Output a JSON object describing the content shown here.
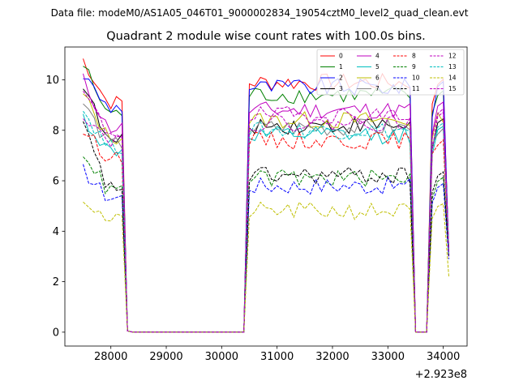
{
  "figure": {
    "supertitle": "Data file: modeM0/AS1A05_046T01_9000002834_19054cztM0_level2_quad_clean.evt",
    "title": "Quadrant 2 module wise count rates with 100.0s bins.",
    "x_offset_label": "+2.923e8"
  },
  "chart_data": {
    "type": "line",
    "title": "Quadrant 2 module wise count rates with 100.0s bins.",
    "xlabel": "",
    "ylabel": "",
    "x_offset": 292300000,
    "xlim": [
      27170,
      34430
    ],
    "ylim": [
      -0.55,
      11.3
    ],
    "xticks": [
      28000,
      29000,
      30000,
      31000,
      32000,
      33000,
      34000
    ],
    "xtick_labels": [
      "28000",
      "29000",
      "30000",
      "31000",
      "32000",
      "33000",
      "34000"
    ],
    "yticks": [
      0,
      2,
      4,
      6,
      8,
      10
    ],
    "ytick_labels": [
      "0",
      "2",
      "4",
      "6",
      "8",
      "10"
    ],
    "grid": false,
    "legend_position": "top-right",
    "gaps": [
      {
        "from": 28300,
        "to": 30400,
        "value": 0.0
      },
      {
        "from": 33600,
        "to": 33600,
        "value": 0.0
      }
    ],
    "segments": {
      "seg1_x": [
        27500,
        27600,
        27700,
        27800,
        27900,
        28000,
        28100,
        28200
      ],
      "seg2_x": [
        30400,
        30500,
        30600,
        30700,
        30800,
        30900,
        31000,
        31100,
        31200,
        31300,
        31400,
        31500,
        31600,
        31700,
        31800,
        31900,
        32000,
        32100,
        32200,
        32300,
        32400,
        32500,
        32600,
        32700,
        32800,
        32900,
        33000,
        33100,
        33200,
        33300,
        33400
      ],
      "seg3_x": [
        33900,
        34000,
        34100
      ]
    },
    "series": [
      {
        "name": "0",
        "color": "#ff0000",
        "dash": "solid",
        "level": 9.9,
        "start": 10.8,
        "end": 3.0
      },
      {
        "name": "1",
        "color": "#008000",
        "dash": "solid",
        "level": 9.4,
        "start": 10.6,
        "end": 3.2
      },
      {
        "name": "2",
        "color": "#0000ff",
        "dash": "solid",
        "level": 9.7,
        "start": 10.2,
        "end": 3.1
      },
      {
        "name": "3",
        "color": "#000000",
        "dash": "solid",
        "level": 8.2,
        "start": 9.9,
        "end": 3.0
      },
      {
        "name": "4",
        "color": "#bf00bf",
        "dash": "solid",
        "level": 8.8,
        "start": 10.0,
        "end": 3.2
      },
      {
        "name": "5",
        "color": "#00bfbf",
        "dash": "solid",
        "level": 7.8,
        "start": 8.5,
        "end": 3.0
      },
      {
        "name": "6",
        "color": "#bfbf00",
        "dash": "solid",
        "level": 8.4,
        "start": 9.4,
        "end": 3.1
      },
      {
        "name": "7",
        "color": "#808080",
        "dash": "solid",
        "level": 8.1,
        "start": 9.1,
        "end": 3.0
      },
      {
        "name": "8",
        "color": "#ff0000",
        "dash": "dashed",
        "level": 7.6,
        "start": 8.0,
        "end": 3.0
      },
      {
        "name": "9",
        "color": "#008000",
        "dash": "dashed",
        "level": 6.1,
        "start": 7.2,
        "end": 3.1
      },
      {
        "name": "10",
        "color": "#0000ff",
        "dash": "dashed",
        "level": 5.8,
        "start": 6.4,
        "end": 2.9
      },
      {
        "name": "11",
        "color": "#000000",
        "dash": "dashed",
        "level": 6.2,
        "start": 8.2,
        "end": 3.0
      },
      {
        "name": "12",
        "color": "#bf00bf",
        "dash": "dashed",
        "level": 8.6,
        "start": 9.5,
        "end": 3.2
      },
      {
        "name": "13",
        "color": "#00bfbf",
        "dash": "dashed",
        "level": 8.0,
        "start": 8.8,
        "end": 3.1
      },
      {
        "name": "14",
        "color": "#bfbf00",
        "dash": "dashed",
        "level": 4.8,
        "start": 5.3,
        "end": 2.2
      },
      {
        "name": "15",
        "color": "#bf00bf",
        "dash": "dashed",
        "level": 8.3,
        "start": 8.7,
        "end": 3.1
      }
    ]
  }
}
